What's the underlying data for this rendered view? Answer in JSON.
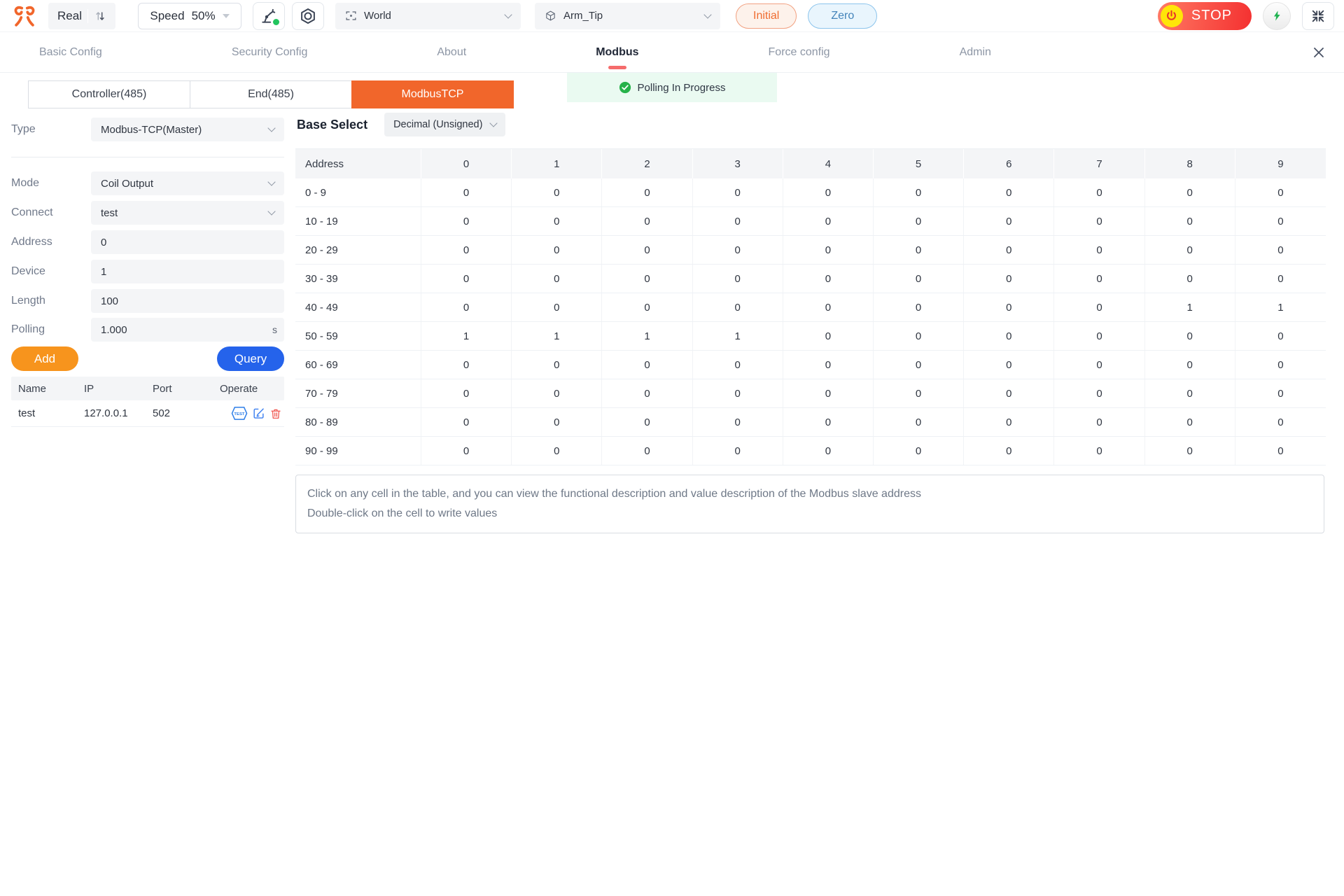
{
  "colors": {
    "accent_orange": "#F1662B",
    "add_orange": "#F7941D",
    "query_blue": "#2563EB",
    "stop_red": "#F43030",
    "status_green": "#26B24A",
    "tab_indicator": "#F56C6C"
  },
  "topbar": {
    "mode_label": "Real",
    "speed_label": "Speed",
    "speed_value": "50%",
    "frame_select": "World",
    "tool_select": "Arm_Tip",
    "initial_button": "Initial",
    "zero_button": "Zero",
    "stop_button": "STOP"
  },
  "nav": {
    "tabs": [
      {
        "label": "Basic Config",
        "active": false
      },
      {
        "label": "Security Config",
        "active": false
      },
      {
        "label": "About",
        "active": false
      },
      {
        "label": "Modbus",
        "active": true
      },
      {
        "label": "Force config",
        "active": false
      },
      {
        "label": "Admin",
        "active": false
      }
    ]
  },
  "modbus": {
    "sub_tabs": [
      {
        "label": "Controller(485)",
        "active": false
      },
      {
        "label": "End(485)",
        "active": false
      },
      {
        "label": "ModbusTCP",
        "active": true
      }
    ],
    "polling_status": "Polling In Progress",
    "form": {
      "type": {
        "label": "Type",
        "value": "Modbus-TCP(Master)"
      },
      "mode": {
        "label": "Mode",
        "value": "Coil Output"
      },
      "connect": {
        "label": "Connect",
        "value": "test"
      },
      "address": {
        "label": "Address",
        "value": "0"
      },
      "device": {
        "label": "Device",
        "value": "1"
      },
      "length": {
        "label": "Length",
        "value": "100"
      },
      "polling": {
        "label": "Polling",
        "value": "1.000",
        "unit": "s"
      },
      "add_button": "Add",
      "query_button": "Query"
    },
    "connections": {
      "headers": [
        "Name",
        "IP",
        "Port",
        "Operate"
      ],
      "rows": [
        {
          "name": "test",
          "ip": "127.0.0.1",
          "port": "502"
        }
      ]
    },
    "base_select": {
      "label": "Base Select",
      "value": "Decimal (Unsigned)"
    },
    "table": {
      "headers": [
        "Address",
        "0",
        "1",
        "2",
        "3",
        "4",
        "5",
        "6",
        "7",
        "8",
        "9"
      ],
      "rows": [
        {
          "label": "0 - 9",
          "values": [
            0,
            0,
            0,
            0,
            0,
            0,
            0,
            0,
            0,
            0
          ]
        },
        {
          "label": "10 - 19",
          "values": [
            0,
            0,
            0,
            0,
            0,
            0,
            0,
            0,
            0,
            0
          ]
        },
        {
          "label": "20 - 29",
          "values": [
            0,
            0,
            0,
            0,
            0,
            0,
            0,
            0,
            0,
            0
          ]
        },
        {
          "label": "30 - 39",
          "values": [
            0,
            0,
            0,
            0,
            0,
            0,
            0,
            0,
            0,
            0
          ]
        },
        {
          "label": "40 - 49",
          "values": [
            0,
            0,
            0,
            0,
            0,
            0,
            0,
            0,
            1,
            1
          ]
        },
        {
          "label": "50 - 59",
          "values": [
            1,
            1,
            1,
            1,
            0,
            0,
            0,
            0,
            0,
            0
          ]
        },
        {
          "label": "60 - 69",
          "values": [
            0,
            0,
            0,
            0,
            0,
            0,
            0,
            0,
            0,
            0
          ]
        },
        {
          "label": "70 - 79",
          "values": [
            0,
            0,
            0,
            0,
            0,
            0,
            0,
            0,
            0,
            0
          ]
        },
        {
          "label": "80 - 89",
          "values": [
            0,
            0,
            0,
            0,
            0,
            0,
            0,
            0,
            0,
            0
          ]
        },
        {
          "label": "90 - 99",
          "values": [
            0,
            0,
            0,
            0,
            0,
            0,
            0,
            0,
            0,
            0
          ]
        }
      ]
    },
    "notes": [
      "Click on any cell in the table, and you can view the functional description and value description of the Modbus slave address",
      "Double-click on the cell to write values"
    ]
  }
}
